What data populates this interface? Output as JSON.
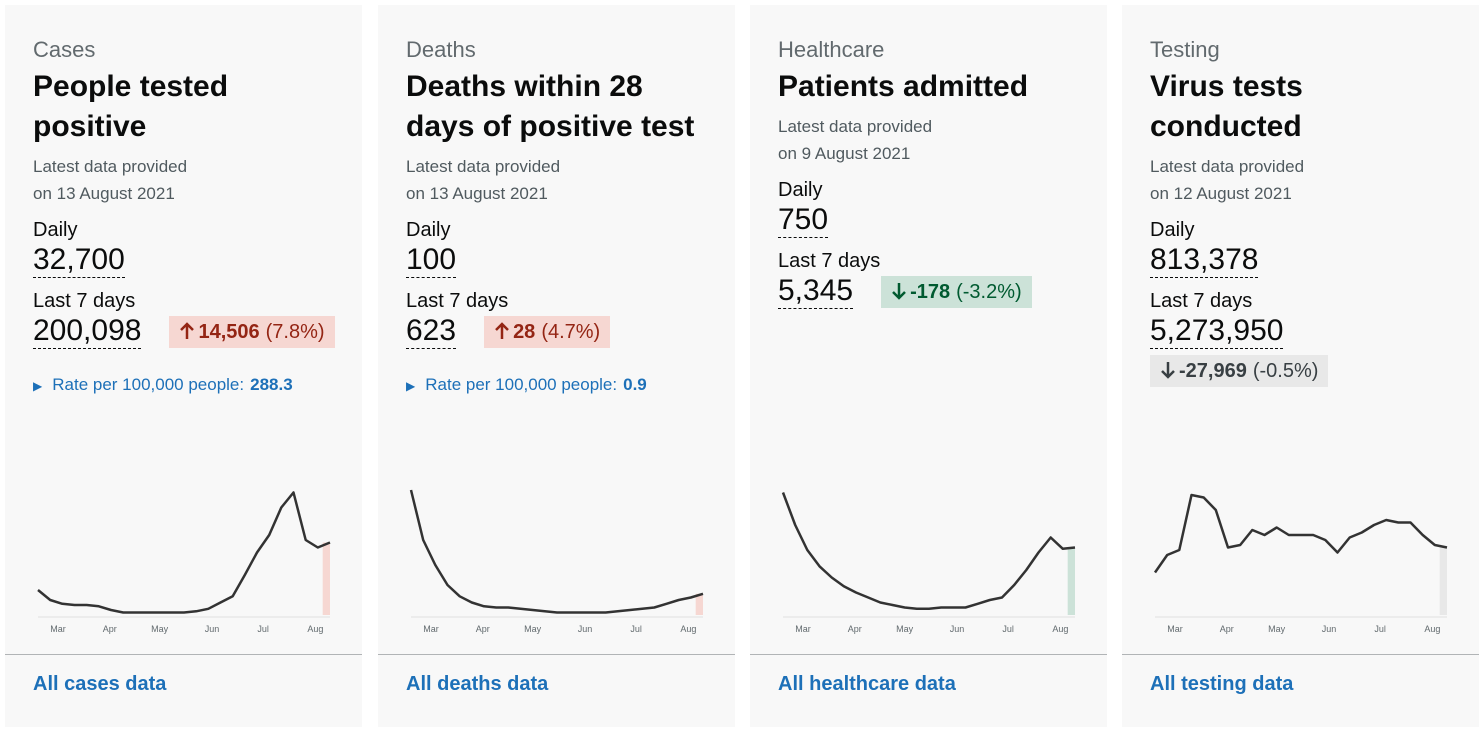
{
  "cards": [
    {
      "category": "Cases",
      "title": "People tested positive",
      "updated_1": "Latest data provided",
      "updated_2": "on 13 August 2021",
      "daily_label": "Daily",
      "daily_value": "32,700",
      "week_label": "Last 7 days",
      "week_value": "200,098",
      "change": {
        "value": "14,506",
        "percent": "(7.8%)",
        "direction": "up",
        "color": "#942514",
        "background": "#f6d7d2"
      },
      "rate": {
        "label": "Rate per 100,000 people:",
        "value": "288.3"
      },
      "chart": {
        "type": "line",
        "values": [
          20,
          12,
          9,
          8,
          8,
          7,
          4,
          2,
          2,
          2,
          2,
          2,
          2,
          3,
          5,
          10,
          15,
          32,
          50,
          64,
          86,
          98,
          60,
          54,
          58
        ],
        "ylim": [
          0,
          100
        ],
        "xticks": [
          {
            "value": 1.64,
            "label": "Mar"
          },
          {
            "value": 5.9,
            "label": "Apr"
          },
          {
            "value": 10.0,
            "label": "May"
          },
          {
            "value": 14.3,
            "label": "Jun"
          },
          {
            "value": 18.5,
            "label": "Jul"
          },
          {
            "value": 22.8,
            "label": "Aug"
          }
        ],
        "line_color": "#333333",
        "highlight_color": "#f6d7d2"
      },
      "link": "All cases data"
    },
    {
      "category": "Deaths",
      "title": "Deaths within 28 days of positive test",
      "updated_1": "Latest data provided",
      "updated_2": "on 13 August 2021",
      "daily_label": "Daily",
      "daily_value": "100",
      "week_label": "Last 7 days",
      "week_value": "623",
      "change": {
        "value": "28",
        "percent": "(4.7%)",
        "direction": "up",
        "color": "#942514",
        "background": "#f6d7d2"
      },
      "rate": {
        "label": "Rate per 100,000 people:",
        "value": "0.9"
      },
      "chart": {
        "type": "line",
        "values": [
          100,
          60,
          40,
          24,
          15,
          10,
          7,
          6,
          6,
          5,
          4,
          3,
          2,
          2,
          2,
          2,
          2,
          3,
          4,
          5,
          6,
          9,
          12,
          14,
          17
        ],
        "ylim": [
          0,
          100
        ],
        "xticks": [
          {
            "value": 1.64,
            "label": "Mar"
          },
          {
            "value": 5.9,
            "label": "Apr"
          },
          {
            "value": 10.0,
            "label": "May"
          },
          {
            "value": 14.3,
            "label": "Jun"
          },
          {
            "value": 18.5,
            "label": "Jul"
          },
          {
            "value": 22.8,
            "label": "Aug"
          }
        ],
        "line_color": "#333333",
        "highlight_color": "#f6d7d2"
      },
      "link": "All deaths data"
    },
    {
      "category": "Healthcare",
      "title": "Patients admitted",
      "updated_1": "Latest data provided",
      "updated_2": "on 9 August 2021",
      "daily_label": "Daily",
      "daily_value": "750",
      "week_label": "Last 7 days",
      "week_value": "5,345",
      "change": {
        "value": "-178",
        "percent": "(-3.2%)",
        "direction": "down",
        "color": "#005a30",
        "background": "#cce2d8"
      },
      "chart": {
        "type": "line",
        "values": [
          98,
          72,
          52,
          39,
          30,
          23,
          18,
          14,
          10,
          8,
          6,
          5,
          5,
          6,
          6,
          6,
          9,
          12,
          14,
          24,
          36,
          50,
          62,
          53,
          54
        ],
        "ylim": [
          0,
          100
        ],
        "xticks": [
          {
            "value": 1.64,
            "label": "Mar"
          },
          {
            "value": 5.9,
            "label": "Apr"
          },
          {
            "value": 10.0,
            "label": "May"
          },
          {
            "value": 14.3,
            "label": "Jun"
          },
          {
            "value": 18.5,
            "label": "Jul"
          },
          {
            "value": 22.8,
            "label": "Aug"
          }
        ],
        "line_color": "#333333",
        "highlight_color": "#cce2d8"
      },
      "link": "All healthcare data"
    },
    {
      "category": "Testing",
      "title": "Virus tests conducted",
      "updated_1": "Latest data provided",
      "updated_2": "on 12 August 2021",
      "daily_label": "Daily",
      "daily_value": "813,378",
      "week_label": "Last 7 days",
      "week_value": "5,273,950",
      "change": {
        "value": "-27,969",
        "percent": "(-0.5%)",
        "direction": "down",
        "color": "#383f43",
        "background": "#e8e8e8"
      },
      "chart": {
        "type": "line",
        "values": [
          34,
          48,
          52,
          96,
          94,
          84,
          54,
          56,
          68,
          64,
          70,
          64,
          64,
          64,
          60,
          50,
          62,
          66,
          72,
          76,
          74,
          74,
          64,
          56,
          54
        ],
        "ylim": [
          0,
          100
        ],
        "xticks": [
          {
            "value": 1.64,
            "label": "Mar"
          },
          {
            "value": 5.9,
            "label": "Apr"
          },
          {
            "value": 10.0,
            "label": "May"
          },
          {
            "value": 14.3,
            "label": "Jun"
          },
          {
            "value": 18.5,
            "label": "Jul"
          },
          {
            "value": 22.8,
            "label": "Aug"
          }
        ],
        "line_color": "#333333",
        "highlight_color": "#e8e8e8"
      },
      "link": "All testing data"
    }
  ]
}
